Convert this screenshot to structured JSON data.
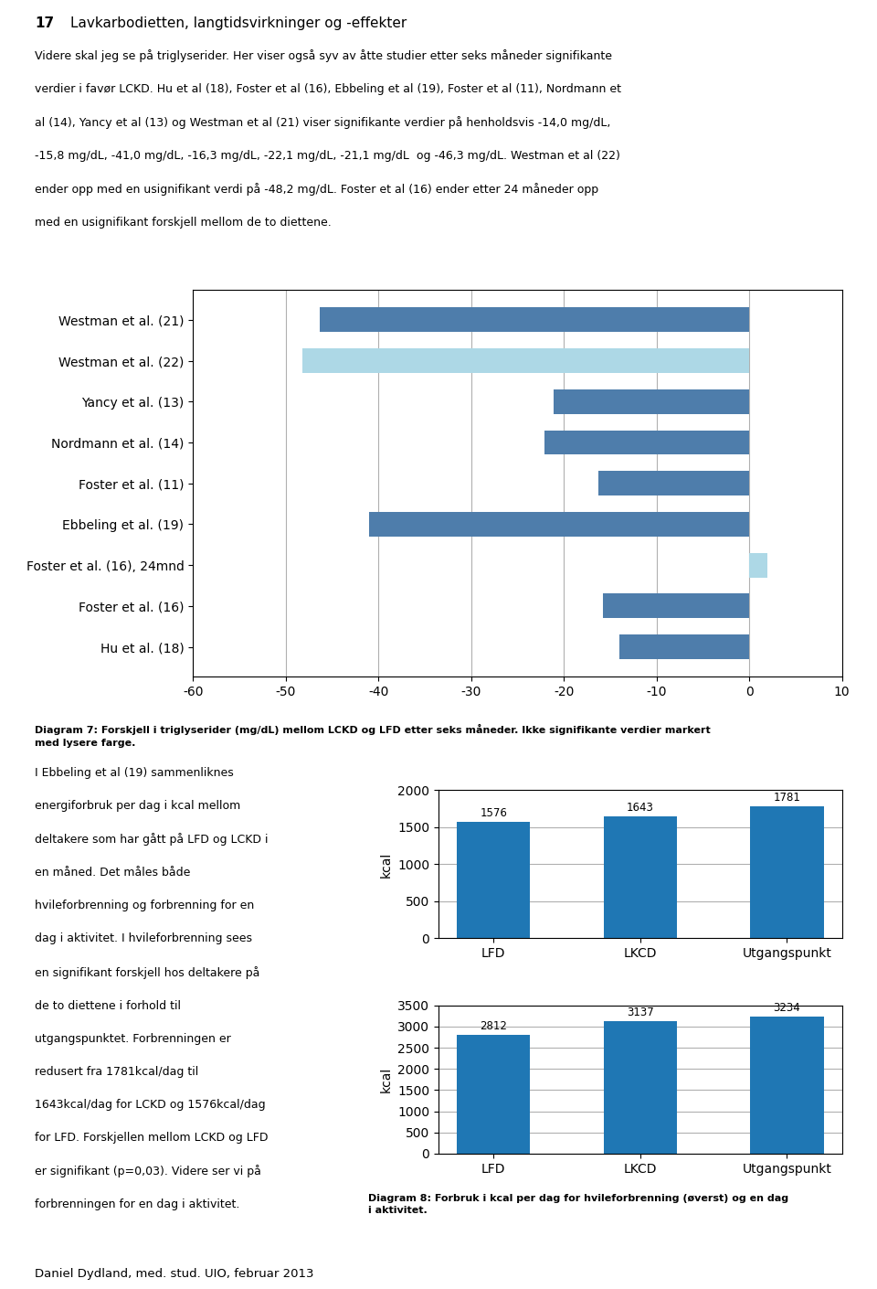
{
  "chart_data": [
    {
      "type": "bar",
      "orientation": "horizontal",
      "title": "Diagram 7: Forskjell i triglyserider (mg/dL) mellom LCKD og LFD etter seks måneder. Ikke signifikante verdier markert\nmed lysere farge.",
      "categories": [
        "Westman et al. (21)",
        "Westman et al. (22)",
        "Yancy et al. (13)",
        "Nordmann et al. (14)",
        "Foster et al. (11)",
        "Ebbeling et al. (19)",
        "Foster et al. (16), 24mnd",
        "Foster et al. (16)",
        "Hu et al. (18)"
      ],
      "values": [
        -46.3,
        -48.2,
        -21.1,
        -22.1,
        -16.3,
        -41.0,
        2.0,
        -15.8,
        -14.0
      ],
      "colors": [
        "#4e7dab",
        "#add8e6",
        "#4e7dab",
        "#4e7dab",
        "#4e7dab",
        "#4e7dab",
        "#add8e6",
        "#4e7dab",
        "#4e7dab"
      ],
      "xlim": [
        -60,
        10
      ],
      "xticks": [
        -60,
        -50,
        -40,
        -30,
        -20,
        -10,
        0,
        10
      ],
      "grid": true,
      "annotations": [
        "17",
        "Lavkarbodietten, langtidsvirkninger og -effekter",
        "Videre skal jeg se på triglyserider. Her viser også syv av åtte studier etter seks måneder signifikante\n\nverdier i favør LCKD. Hu et al (18), Foster et al (16), Ebbeling et al (19), Foster et al (11), Nordmann et\n\nal (14), Yancy et al (13) og Westman et al (21) viser signifikante verdier på henholdsvis -14,0 mg/dL,\n\n-15,8 mg/dL, -41,0 mg/dL, -16,3 mg/dL, -22,1 mg/dL, -21,1 mg/dL  og -46,3 mg/dL. Westman et al (22)\n\nender opp med en usignifikant verdi på -48,2 mg/dL. Foster et al (16) ender etter 24 måneder opp\n\nmed en usignifikant forskjell mellom de to diettene.",
        "Daniel Dydland, med. stud. UIO, februar 2013"
      ]
    },
    {
      "type": "bar",
      "categories": [
        "LFD",
        "LKCD",
        "Utgangspunkt"
      ],
      "values": [
        1576,
        1643,
        1781
      ],
      "ylim": [
        0,
        2000
      ],
      "yticks": [
        0,
        500,
        1000,
        1500,
        2000
      ],
      "ylabel": "kcal",
      "data_labels": true,
      "grid": true,
      "annotations": [
        "I Ebbeling et al (19) sammenliknes\n\nenergiforbruk per dag i kcal mellom\n\ndeltakere som har gått på LFD og LCKD i\n\nen måned. Det måles både\n\nhvileforbrenning og forbrenning for en\n\ndag i aktivitet. I hvileforbrenning sees\n\nen signifikant forskjell hos deltakere på\n\nde to diettene i forhold til\n\nutgangspunktet. Forbrenningen er\n\nredusert fra 1781kcal/dag til\n\n1643kcal/dag for LCKD og 1576kcal/dag\n\nfor LFD. Forskjellen mellom LCKD og LFD\n\ner signifikant (p=0,03). Videre ser vi på\n\nforbrenningen for en dag i aktivitet."
      ]
    },
    {
      "type": "bar",
      "title": "Diagram 8: Forbruk i kcal per dag for hvileforbrenning (øverst) og en dag\ni aktivitet.",
      "categories": [
        "LFD",
        "LKCD",
        "Utgangspunkt"
      ],
      "values": [
        2812,
        3137,
        3234
      ],
      "ylim": [
        0,
        3500
      ],
      "yticks": [
        0,
        500,
        1000,
        1500,
        2000,
        2500,
        3000,
        3500
      ],
      "ylabel": "kcal",
      "data_labels": true,
      "grid": true
    }
  ]
}
